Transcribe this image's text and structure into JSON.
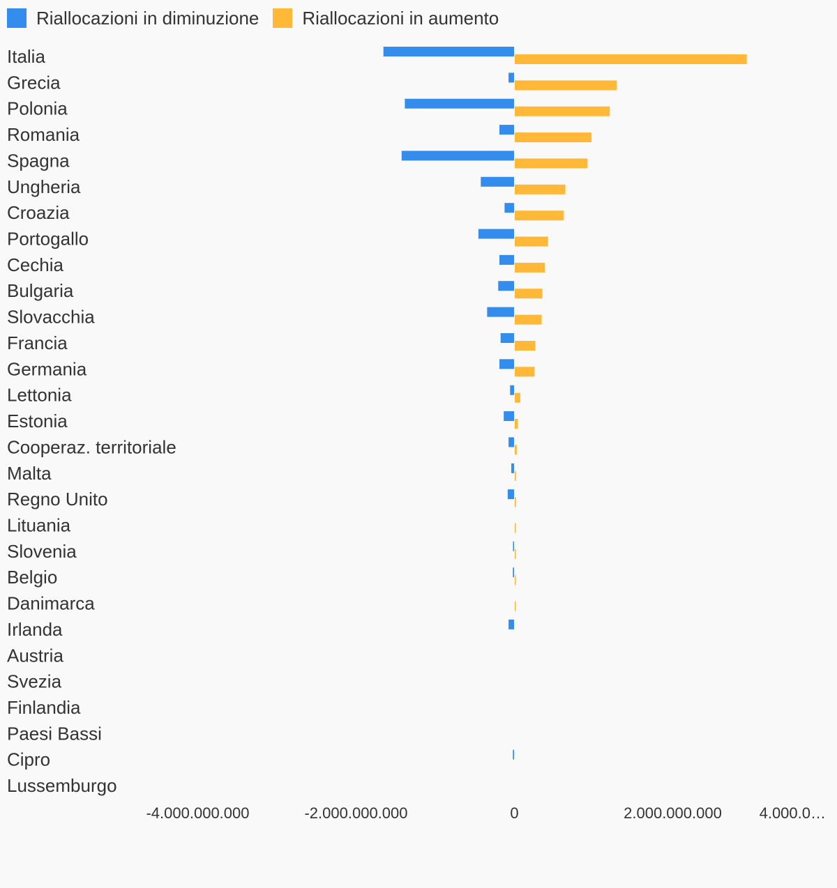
{
  "chart_data": {
    "type": "bar",
    "orientation": "horizontal",
    "categories": [
      "Italia",
      "Grecia",
      "Polonia",
      "Romania",
      "Spagna",
      "Ungheria",
      "Croazia",
      "Portogallo",
      "Cechia",
      "Bulgaria",
      "Slovacchia",
      "Francia",
      "Germania",
      "Lettonia",
      "Estonia",
      "Cooperaz. territoriale",
      "Malta",
      "Regno Unito",
      "Lituania",
      "Slovenia",
      "Belgio",
      "Danimarca",
      "Irlanda",
      "Austria",
      "Svezia",
      "Finlandia",
      "Paesi Bassi",
      "Cipro",
      "Lussemburgo"
    ],
    "series": [
      {
        "name": "Riallocazioni in diminuzione",
        "color": "#348cec",
        "values": [
          -1650000000,
          -70000000,
          -1380000000,
          -185000000,
          -1420000000,
          -420000000,
          -120000000,
          -450000000,
          -185000000,
          -200000000,
          -340000000,
          -170000000,
          -185000000,
          -50000000,
          -130000000,
          -70000000,
          -35000000,
          -80000000,
          0,
          -8000000,
          -15000000,
          0,
          -70000000,
          0,
          0,
          0,
          0,
          -15000000,
          0
        ]
      },
      {
        "name": "Riallocazioni in aumento",
        "color": "#ffb838",
        "values": [
          2930000000,
          1290000000,
          1200000000,
          970000000,
          920000000,
          640000000,
          620000000,
          420000000,
          380000000,
          350000000,
          340000000,
          260000000,
          250000000,
          70000000,
          40000000,
          25000000,
          15000000,
          15000000,
          8000000,
          10000000,
          8000000,
          8000000,
          0,
          0,
          0,
          0,
          0,
          0,
          0
        ]
      }
    ],
    "xaxis": {
      "ticks": [
        -4000000000,
        -2000000000,
        0,
        2000000000,
        4000000000
      ],
      "tick_labels": [
        "-4.000.000.000",
        "-2.000.000.000",
        "0",
        "2.000.000.000",
        "4.000.0…"
      ],
      "range": [
        -4000000000,
        4000000000
      ]
    },
    "legend_position": "top-left",
    "grid": false
  }
}
